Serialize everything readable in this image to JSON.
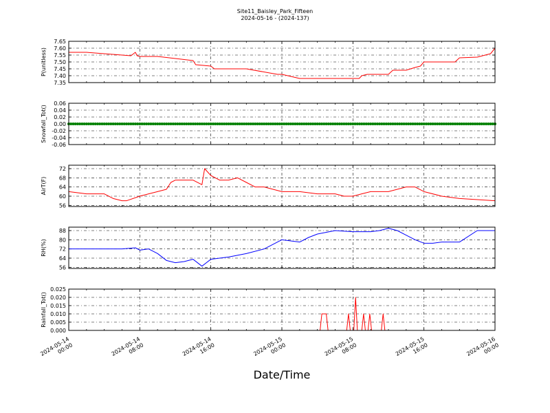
{
  "figure": {
    "title_line1": "Site11_Baisley_Park_Fifteen",
    "title_line2": "2024-05-16 - (2024-137)",
    "xlabel": "Date/Time"
  },
  "chart_data": [
    {
      "type": "line",
      "ylabel": "P(unitless)",
      "color": "#ff0000",
      "ylim": [
        7.35,
        7.65
      ],
      "yticks": [
        "7.35",
        "7.40",
        "7.45",
        "7.50",
        "7.55",
        "7.60",
        "7.65"
      ],
      "grid": true,
      "x_hours": [
        0,
        2,
        7,
        7.5,
        7.7,
        8,
        10,
        14,
        14.3,
        16,
        16.4,
        20,
        23.5,
        24,
        26,
        29,
        31,
        31.3,
        32.7,
        33,
        33.6,
        36,
        36.5,
        38,
        39,
        39.6,
        40,
        43.5,
        44,
        46,
        47.5,
        48
      ],
      "y": [
        7.57,
        7.57,
        7.545,
        7.57,
        7.545,
        7.54,
        7.54,
        7.51,
        7.48,
        7.47,
        7.45,
        7.45,
        7.41,
        7.41,
        7.38,
        7.38,
        7.38,
        7.38,
        7.38,
        7.4,
        7.41,
        7.41,
        7.44,
        7.44,
        7.46,
        7.47,
        7.5,
        7.5,
        7.53,
        7.535,
        7.56,
        7.6
      ]
    },
    {
      "type": "scatter",
      "ylabel": "Snowfall_Tot()",
      "color": "#008000",
      "ylim": [
        -0.06,
        0.06
      ],
      "yticks": [
        "-0.06",
        "-0.04",
        "-0.02",
        "0.00",
        "0.02",
        "0.04",
        "0.06"
      ],
      "grid": true,
      "constant_value": 0.0,
      "x_range_hours": [
        0,
        48
      ]
    },
    {
      "type": "line",
      "ylabel": "AirT(F)",
      "color": "#ff0000",
      "ylim": [
        55.5,
        73.5
      ],
      "yticks": [
        "56",
        "60",
        "64",
        "68",
        "72"
      ],
      "grid": true,
      "x_hours": [
        0,
        2,
        4,
        5,
        6,
        6.5,
        8,
        9,
        10,
        11,
        11.5,
        12,
        14,
        15,
        15.3,
        16,
        17,
        18,
        19,
        20,
        21,
        22,
        24,
        26,
        28,
        30,
        31,
        32,
        33,
        34,
        36,
        38,
        39,
        40,
        42,
        44,
        46,
        48
      ],
      "y": [
        62,
        61,
        61,
        59,
        58,
        58,
        60,
        61,
        62,
        63,
        66,
        67,
        67,
        65,
        72,
        69,
        67,
        67,
        68,
        66,
        64,
        64,
        62,
        62,
        61,
        61,
        60,
        60,
        61,
        62,
        62,
        64,
        64,
        62,
        60,
        59,
        58.5,
        58
      ]
    },
    {
      "type": "line",
      "ylabel": "RH(%)",
      "color": "#0000ff",
      "ylim": [
        55,
        91
      ],
      "yticks": [
        "56",
        "64",
        "72",
        "80",
        "88"
      ],
      "grid": true,
      "x_hours": [
        0,
        2,
        4,
        6,
        7.5,
        8,
        9,
        10,
        11,
        12,
        13,
        14,
        14.5,
        15,
        16,
        18,
        20,
        22,
        24,
        26,
        27,
        28,
        30,
        32,
        34,
        35,
        36,
        37,
        38,
        39,
        40,
        41,
        42,
        44,
        46,
        48
      ],
      "y": [
        72,
        72,
        72,
        72,
        73,
        71,
        72,
        68,
        62,
        60,
        61,
        63,
        60,
        57,
        63,
        65,
        68,
        72,
        80,
        78,
        82,
        85,
        88,
        87,
        87,
        88,
        90,
        88,
        84,
        80,
        77,
        77,
        78,
        78,
        88,
        88
      ]
    },
    {
      "type": "line",
      "ylabel": "Rainfall_Tot()",
      "color": "#ff0000",
      "ylim": [
        0,
        0.025
      ],
      "yticks": [
        "0.000",
        "0.005",
        "0.010",
        "0.015",
        "0.020",
        "0.025"
      ],
      "grid": true,
      "x_hours": [
        0,
        28.3,
        28.5,
        29.0,
        29.2,
        31.3,
        31.5,
        31.7,
        32.1,
        32.3,
        32.5,
        33.0,
        33.2,
        33.4,
        33.7,
        33.9,
        34.1,
        35.2,
        35.4,
        35.6,
        48
      ],
      "y": [
        0,
        0,
        0.01,
        0.01,
        0,
        0,
        0.01,
        0,
        0,
        0.02,
        0,
        0,
        0.01,
        0,
        0,
        0.01,
        0,
        0,
        0.01,
        0,
        0
      ]
    }
  ],
  "xaxis": {
    "ticks": [
      {
        "hours": 0,
        "line1": "2024-05-14",
        "line2": "00:00"
      },
      {
        "hours": 8,
        "line1": "2024-05-14",
        "line2": "08:00"
      },
      {
        "hours": 16,
        "line1": "2024-05-14",
        "line2": "16:00"
      },
      {
        "hours": 24,
        "line1": "2024-05-15",
        "line2": "00:00"
      },
      {
        "hours": 32,
        "line1": "2024-05-15",
        "line2": "08:00"
      },
      {
        "hours": 40,
        "line1": "2024-05-15",
        "line2": "16:00"
      },
      {
        "hours": 48,
        "line1": "2024-05-16",
        "line2": "00:00"
      }
    ],
    "xlim_hours": [
      0,
      48
    ]
  }
}
